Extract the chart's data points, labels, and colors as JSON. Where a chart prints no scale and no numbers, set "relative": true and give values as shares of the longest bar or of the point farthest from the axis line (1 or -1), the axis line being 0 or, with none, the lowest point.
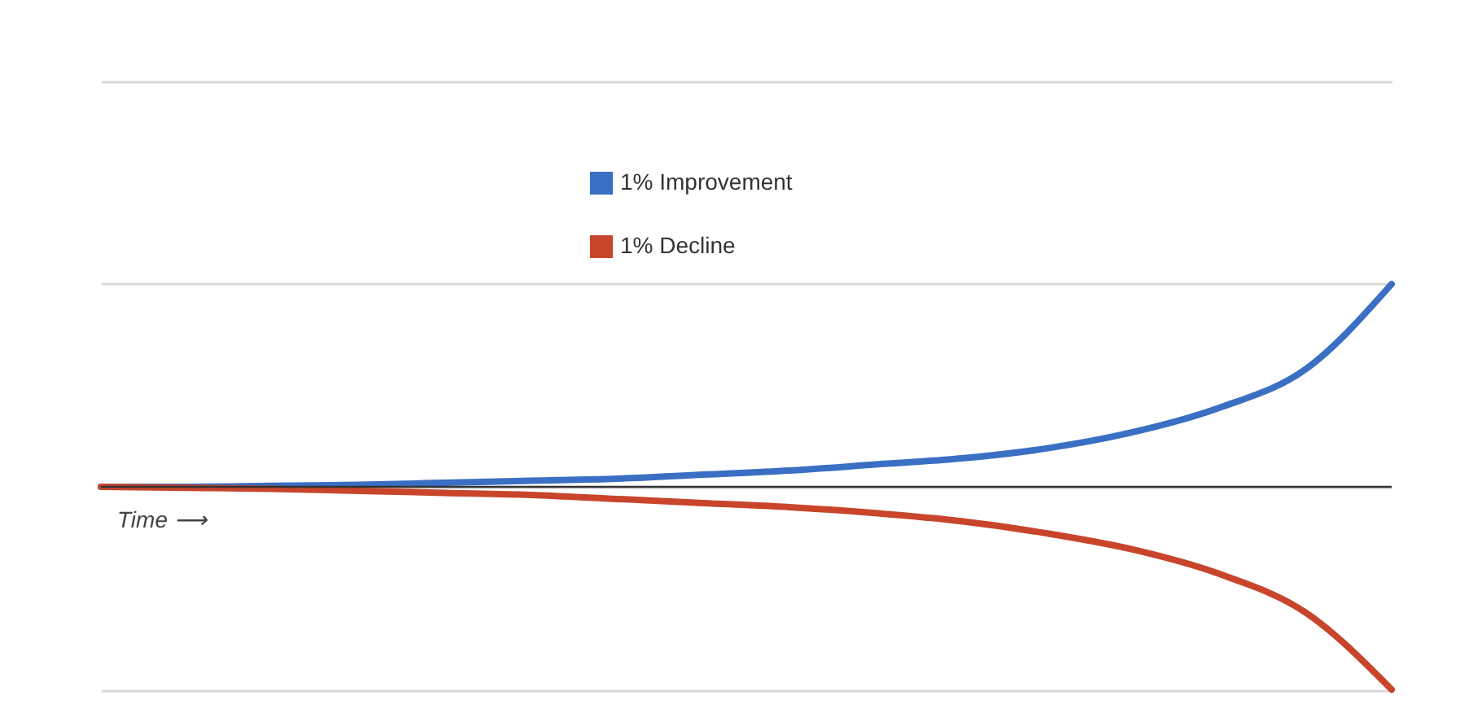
{
  "chart_data": {
    "type": "line",
    "relative": true,
    "xlabel": "Time ⟶",
    "legend": "top",
    "grid": "y",
    "marker": "none",
    "line_style": "solid",
    "categories": [
      null,
      null,
      null,
      null,
      null,
      null,
      null,
      null,
      null,
      null,
      null,
      null,
      null,
      null,
      null,
      null
    ],
    "series": [
      {
        "name": "1% Improvement",
        "color": "#3a6fc4",
        "values": [
          0,
          0,
          0.005,
          0.01,
          0.02,
          0.03,
          0.04,
          0.06,
          0.08,
          0.11,
          0.14,
          0.19,
          0.27,
          0.39,
          0.58,
          1
        ]
      },
      {
        "name": "1% Decline",
        "color": "#c8452c",
        "values": [
          0,
          -0.005,
          -0.01,
          -0.02,
          -0.03,
          -0.04,
          -0.06,
          -0.08,
          -0.1,
          -0.13,
          -0.17,
          -0.23,
          -0.31,
          -0.43,
          -0.62,
          -1
        ]
      }
    ]
  }
}
